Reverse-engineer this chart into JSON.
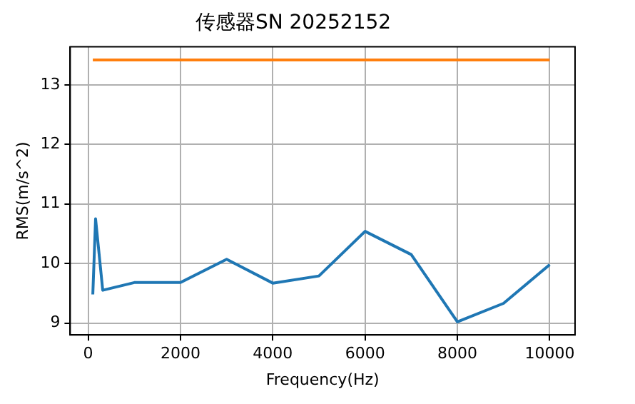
{
  "chart_data": {
    "type": "line",
    "title": "传感器SN 20252152",
    "xlabel": "Frequency(Hz)",
    "ylabel": "RMS(m/s^2)",
    "xlim": [
      -390,
      10550
    ],
    "ylim": [
      8.8,
      13.64
    ],
    "xticks": [
      0,
      2000,
      4000,
      6000,
      8000,
      10000
    ],
    "yticks": [
      9,
      10,
      11,
      12,
      13
    ],
    "grid": true,
    "legend": false,
    "marker": "none",
    "line_style": "solid",
    "series": [
      {
        "color": "#1f77b4",
        "x": [
          100,
          160,
          315,
          1000,
          2000,
          3000,
          4000,
          5000,
          6000,
          7000,
          8000,
          9000,
          10000
        ],
        "values": [
          9.48,
          10.75,
          9.55,
          9.68,
          9.68,
          10.07,
          9.67,
          9.79,
          10.54,
          10.15,
          9.02,
          9.33,
          9.98
        ]
      },
      {
        "color": "#ff7f0e",
        "x": [
          100,
          10000
        ],
        "values": [
          13.42,
          13.42
        ]
      }
    ]
  }
}
